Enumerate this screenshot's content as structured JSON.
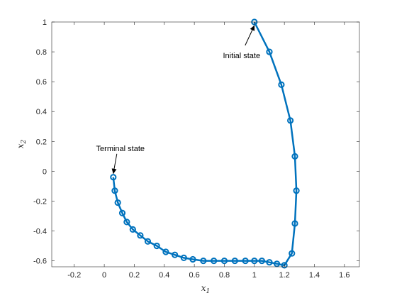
{
  "chart_data": {
    "type": "line",
    "xlabel": "x",
    "xlabel_sub": "1",
    "ylabel": "x",
    "ylabel_sub": "2",
    "xlim": [
      -0.35,
      1.7
    ],
    "ylim": [
      -0.64,
      1.0
    ],
    "xticks": [
      -0.2,
      0,
      0.2,
      0.4,
      0.6,
      0.8,
      1,
      1.2,
      1.4,
      1.6
    ],
    "xtick_labels": [
      "-0.2",
      "0",
      "0.2",
      "0.4",
      "0.6",
      "0.8",
      "1",
      "1.2",
      "1.4",
      "1.6"
    ],
    "yticks": [
      -0.6,
      -0.4,
      -0.2,
      0,
      0.2,
      0.4,
      0.6,
      0.8,
      1
    ],
    "ytick_labels": [
      "-0.6",
      "-0.4",
      "-0.2",
      "0",
      "0.2",
      "0.4",
      "0.6",
      "0.8",
      "1"
    ],
    "grid": false,
    "series": [
      {
        "color": "#0072bd",
        "marker": "circle",
        "x": [
          1.0,
          1.1,
          1.18,
          1.24,
          1.27,
          1.28,
          1.27,
          1.25,
          1.2,
          1.15,
          1.1,
          1.05,
          1.0,
          0.94,
          0.87,
          0.8,
          0.73,
          0.66,
          0.59,
          0.53,
          0.47,
          0.41,
          0.35,
          0.29,
          0.24,
          0.19,
          0.15,
          0.12,
          0.09,
          0.07,
          0.06
        ],
        "y": [
          1.0,
          0.8,
          0.58,
          0.34,
          0.1,
          -0.13,
          -0.35,
          -0.55,
          -0.63,
          -0.62,
          -0.61,
          -0.6,
          -0.6,
          -0.6,
          -0.6,
          -0.6,
          -0.6,
          -0.6,
          -0.59,
          -0.58,
          -0.56,
          -0.54,
          -0.5,
          -0.47,
          -0.43,
          -0.39,
          -0.34,
          -0.28,
          -0.21,
          -0.13,
          -0.04
        ]
      }
    ],
    "annotations": [
      {
        "text": "Initial state",
        "x": 1.0,
        "y": 1.0,
        "label_anchor": "below-left"
      },
      {
        "text": "Terminal state",
        "x": 0.06,
        "y": -0.04,
        "label_anchor": "above"
      }
    ]
  }
}
